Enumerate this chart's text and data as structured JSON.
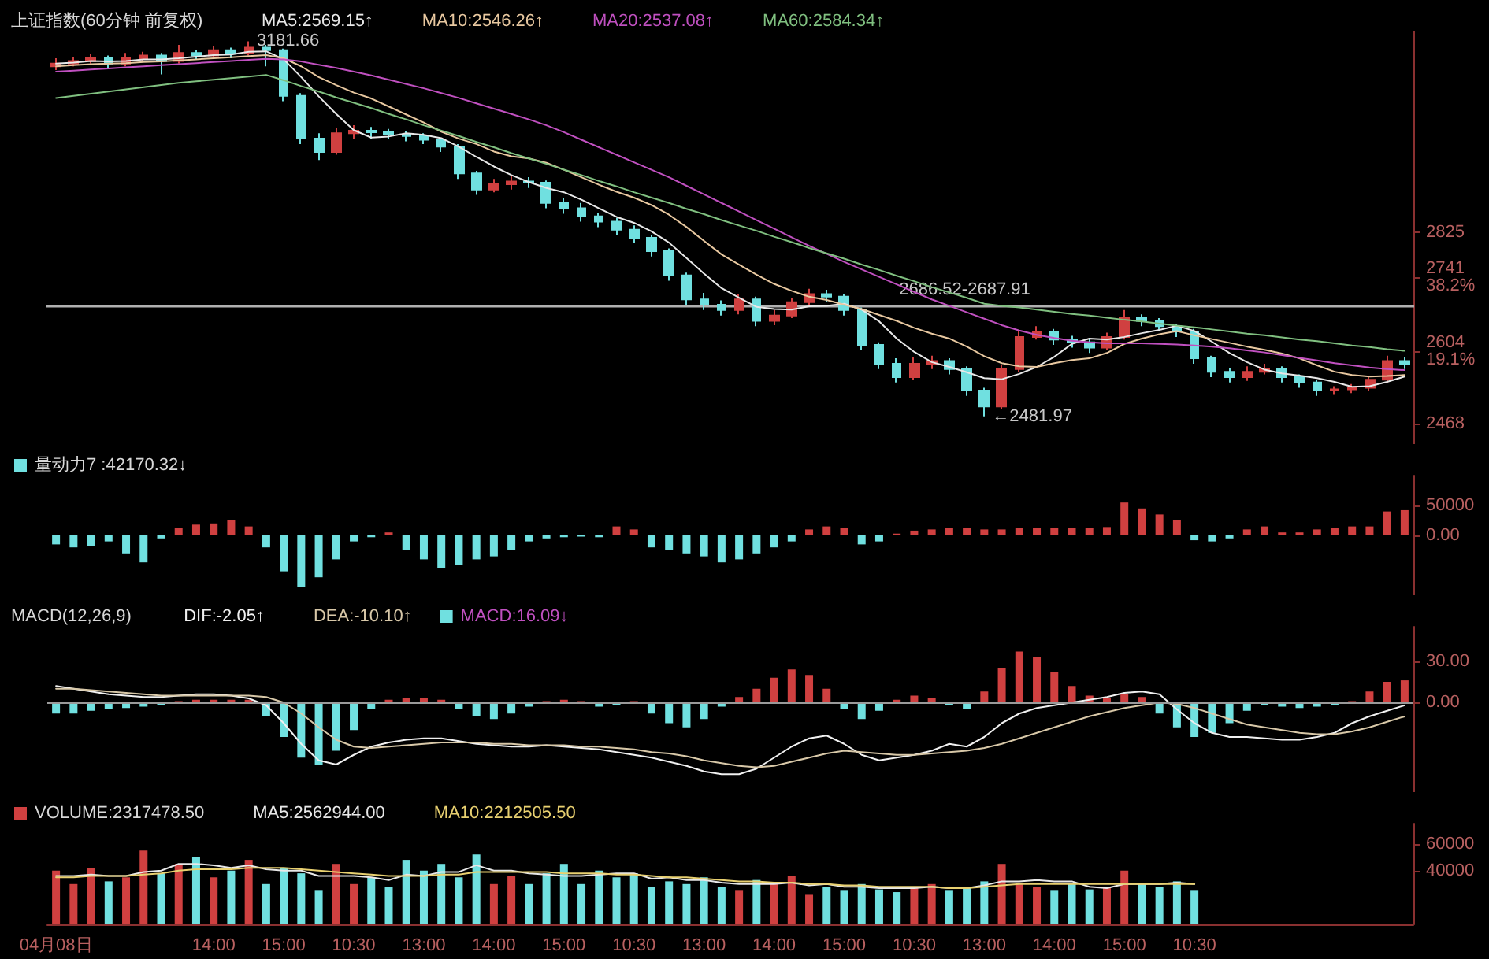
{
  "chart_data": [
    {
      "type": "candlestick",
      "title": "上证指数(60分钟 前复权)",
      "legend": "top left",
      "marker": "none",
      "grid": false,
      "tick_labels": "y",
      "ylim": [
        2430,
        3200
      ],
      "yticks": [
        2468,
        {
          "value": 2604,
          "label": "2604\n19.1%"
        },
        {
          "value": 2741,
          "label": "2741\n38.2%"
        },
        2825
      ],
      "annotations": [
        "3181.66",
        "←2481.97"
      ],
      "bands": [
        {
          "axis": "y",
          "from": 2686.52,
          "to": 2687.91,
          "label": "2686.52-2687.91",
          "color": "#b0b0b0"
        }
      ],
      "series": [
        {
          "color": "#d04040",
          "colors": [
            "#d04040",
            "#d04040",
            "#d04040",
            "#70e0e0",
            "#d04040",
            "#d04040",
            "#70e0e0",
            "#d04040",
            "#70e0e0",
            "#d04040",
            "#70e0e0",
            "#d04040",
            "#70e0e0",
            "#70e0e0",
            "#70e0e0",
            "#70e0e0",
            "#d04040",
            "#d04040",
            "#70e0e0",
            "#70e0e0",
            "#70e0e0",
            "#70e0e0",
            "#70e0e0",
            "#70e0e0",
            "#70e0e0",
            "#d04040",
            "#d04040",
            "#70e0e0",
            "#70e0e0",
            "#70e0e0",
            "#70e0e0",
            "#70e0e0",
            "#70e0e0",
            "#70e0e0",
            "#70e0e0",
            "#70e0e0",
            "#70e0e0",
            "#70e0e0",
            "#70e0e0",
            "#d04040",
            "#70e0e0",
            "#d04040",
            "#d04040",
            "#d04040",
            "#70e0e0",
            "#70e0e0",
            "#70e0e0",
            "#70e0e0",
            "#70e0e0",
            "#d04040",
            "#d04040",
            "#70e0e0",
            "#70e0e0",
            "#70e0e0",
            "#d04040",
            "#d04040",
            "#d04040",
            "#70e0e0",
            "#70e0e0",
            "#70e0e0",
            "#d04040",
            "#d04040",
            "#70e0e0",
            "#70e0e0",
            "#70e0e0",
            "#70e0e0",
            "#70e0e0",
            "#70e0e0",
            "#d04040",
            "#d04040",
            "#70e0e0",
            "#70e0e0",
            "#70e0e0",
            "#d04040",
            "#d04040",
            "#d04040",
            "#d04040",
            "#70e0e0"
          ],
          "ohlc": [
            [
              3135,
              3150,
              3128,
              3140
            ],
            [
              3140,
              3152,
              3135,
              3145
            ],
            [
              3145,
              3158,
              3140,
              3150
            ],
            [
              3150,
              3155,
              3132,
              3140
            ],
            [
              3140,
              3160,
              3135,
              3150
            ],
            [
              3150,
              3162,
              3145,
              3155
            ],
            [
              3155,
              3160,
              3120,
              3145
            ],
            [
              3145,
              3175,
              3140,
              3160
            ],
            [
              3160,
              3165,
              3148,
              3155
            ],
            [
              3155,
              3172,
              3150,
              3165
            ],
            [
              3165,
              3170,
              3150,
              3160
            ],
            [
              3160,
              3181.66,
              3155,
              3170
            ],
            [
              3170,
              3175,
              3135,
              3165
            ],
            [
              3165,
              3168,
              3070,
              3080
            ],
            [
              3080,
              3085,
              2990,
              3000
            ],
            [
              3000,
              3010,
              2960,
              2975
            ],
            [
              2975,
              3020,
              2970,
              3010
            ],
            [
              3010,
              3025,
              3000,
              3015
            ],
            [
              3015,
              3022,
              3000,
              3012
            ],
            [
              3012,
              3018,
              3000,
              3008
            ],
            [
              3008,
              3015,
              2995,
              3005
            ],
            [
              3005,
              3010,
              2990,
              2998
            ],
            [
              2998,
              3002,
              2975,
              2985
            ],
            [
              2985,
              2990,
              2925,
              2935
            ],
            [
              2935,
              2940,
              2895,
              2905
            ],
            [
              2905,
              2925,
              2900,
              2915
            ],
            [
              2915,
              2930,
              2905,
              2920
            ],
            [
              2920,
              2928,
              2908,
              2918
            ],
            [
              2918,
              2922,
              2870,
              2880
            ],
            [
              2880,
              2890,
              2860,
              2870
            ],
            [
              2870,
              2880,
              2845,
              2855
            ],
            [
              2855,
              2862,
              2835,
              2845
            ],
            [
              2845,
              2852,
              2820,
              2830
            ],
            [
              2830,
              2838,
              2805,
              2815
            ],
            [
              2815,
              2820,
              2780,
              2790
            ],
            [
              2790,
              2795,
              2735,
              2745
            ],
            [
              2745,
              2750,
              2690,
              2700
            ],
            [
              2700,
              2712,
              2680,
              2690
            ],
            [
              2690,
              2698,
              2670,
              2680
            ],
            [
              2680,
              2710,
              2672,
              2700
            ],
            [
              2700,
              2705,
              2650,
              2660
            ],
            [
              2660,
              2680,
              2652,
              2670
            ],
            [
              2670,
              2702,
              2665,
              2695
            ],
            [
              2695,
              2720,
              2690,
              2710
            ],
            [
              2710,
              2718,
              2695,
              2705
            ],
            [
              2705,
              2710,
              2670,
              2680
            ],
            [
              2680,
              2685,
              2605,
              2615
            ],
            [
              2615,
              2620,
              2570,
              2580
            ],
            [
              2580,
              2590,
              2545,
              2555
            ],
            [
              2555,
              2592,
              2550,
              2580
            ],
            [
              2580,
              2595,
              2570,
              2585
            ],
            [
              2585,
              2590,
              2560,
              2570
            ],
            [
              2570,
              2575,
              2520,
              2530
            ],
            [
              2530,
              2535,
              2481.97,
              2500
            ],
            [
              2500,
              2578,
              2495,
              2570
            ],
            [
              2570,
              2640,
              2565,
              2630
            ],
            [
              2630,
              2650,
              2625,
              2640
            ],
            [
              2640,
              2645,
              2615,
              2625
            ],
            [
              2625,
              2632,
              2610,
              2620
            ],
            [
              2620,
              2628,
              2600,
              2610
            ],
            [
              2610,
              2638,
              2605,
              2630
            ],
            [
              2630,
              2680,
              2625,
              2665
            ],
            [
              2665,
              2672,
              2650,
              2660
            ],
            [
              2660,
              2665,
              2640,
              2650
            ],
            [
              2650,
              2655,
              2630,
              2640
            ],
            [
              2640,
              2645,
              2580,
              2590
            ],
            [
              2590,
              2595,
              2555,
              2565
            ],
            [
              2565,
              2572,
              2545,
              2555
            ],
            [
              2555,
              2575,
              2548,
              2565
            ],
            [
              2565,
              2580,
              2560,
              2570
            ],
            [
              2570,
              2575,
              2545,
              2555
            ],
            [
              2555,
              2560,
              2535,
              2545
            ],
            [
              2545,
              2550,
              2520,
              2530
            ],
            [
              2530,
              2538,
              2522,
              2532
            ],
            [
              2532,
              2542,
              2525,
              2535
            ],
            [
              2535,
              2558,
              2530,
              2550
            ],
            [
              2550,
              2595,
              2545,
              2585
            ],
            [
              2585,
              2592,
              2570,
              2580
            ]
          ]
        },
        {
          "type": "line",
          "name": "MA5:2569.15↑",
          "color": "#e8e8e8",
          "values": [
            3140,
            3142,
            3145,
            3144,
            3145,
            3148,
            3148,
            3150,
            3153,
            3156,
            3157,
            3162,
            3163,
            3148,
            3115,
            3079,
            3046,
            3016,
            3002,
            3004,
            3010,
            3007,
            3001,
            2985,
            2966,
            2948,
            2932,
            2919,
            2908,
            2900,
            2886,
            2870,
            2854,
            2843,
            2827,
            2806,
            2777,
            2748,
            2721,
            2703,
            2686,
            2682,
            2681,
            2687,
            2688,
            2692,
            2681,
            2659,
            2627,
            2602,
            2583,
            2574,
            2564,
            2553,
            2551,
            2561,
            2574,
            2593,
            2617,
            2627,
            2625,
            2630,
            2637,
            2643,
            2651,
            2641,
            2621,
            2600,
            2583,
            2569,
            2562,
            2558,
            2553,
            2546,
            2537,
            2538,
            2546,
            2556
          ]
        },
        {
          "type": "line",
          "name": "MA10:2546.26↑",
          "color": "#e8c8a0",
          "values": [
            3135,
            3137,
            3139,
            3140,
            3141,
            3143,
            3144,
            3146,
            3148,
            3150,
            3152,
            3154,
            3156,
            3150,
            3135,
            3115,
            3100,
            3086,
            3075,
            3060,
            3045,
            3030,
            3013,
            3000,
            2990,
            2976,
            2967,
            2963,
            2955,
            2942,
            2928,
            2914,
            2901,
            2890,
            2876,
            2858,
            2835,
            2809,
            2784,
            2765,
            2746,
            2729,
            2716,
            2705,
            2699,
            2690,
            2682,
            2671,
            2660,
            2647,
            2636,
            2627,
            2612,
            2594,
            2581,
            2575,
            2574,
            2581,
            2587,
            2590,
            2600,
            2617,
            2627,
            2635,
            2641,
            2633,
            2626,
            2619,
            2612,
            2606,
            2599,
            2590,
            2577,
            2565,
            2559,
            2556,
            2557,
            2559
          ]
        },
        {
          "type": "line",
          "name": "MA20:2537.08↑",
          "color": "#c050c0",
          "values": [
            3125,
            3127,
            3129,
            3131,
            3133,
            3135,
            3137,
            3139,
            3141,
            3143,
            3145,
            3147,
            3149,
            3148,
            3144,
            3138,
            3132,
            3125,
            3118,
            3110,
            3102,
            3094,
            3085,
            3076,
            3066,
            3056,
            3046,
            3036,
            3025,
            3012,
            2998,
            2984,
            2970,
            2956,
            2942,
            2928,
            2912,
            2896,
            2880,
            2864,
            2848,
            2832,
            2816,
            2800,
            2785,
            2770,
            2756,
            2742,
            2728,
            2714,
            2700,
            2688,
            2676,
            2664,
            2652,
            2642,
            2634,
            2628,
            2623,
            2620,
            2618,
            2618,
            2618,
            2617,
            2616,
            2614,
            2612,
            2609,
            2605,
            2601,
            2596,
            2591,
            2586,
            2581,
            2577,
            2573,
            2570,
            2568
          ]
        },
        {
          "type": "line",
          "name": "MA60:2584.34↑",
          "color": "#80c080",
          "values": [
            3076,
            3080,
            3084,
            3088,
            3092,
            3096,
            3100,
            3104,
            3107,
            3110,
            3113,
            3116,
            3119,
            3109,
            3098,
            3088,
            3077,
            3067,
            3057,
            3046,
            3036,
            3025,
            3015,
            3005,
            2994,
            2984,
            2973,
            2963,
            2953,
            2942,
            2932,
            2921,
            2911,
            2900,
            2890,
            2880,
            2869,
            2859,
            2848,
            2838,
            2828,
            2817,
            2807,
            2796,
            2786,
            2776,
            2765,
            2755,
            2744,
            2734,
            2723,
            2713,
            2703,
            2692,
            2688,
            2685,
            2681,
            2677,
            2673,
            2670,
            2666,
            2662,
            2659,
            2655,
            2651,
            2648,
            2644,
            2640,
            2636,
            2633,
            2629,
            2625,
            2622,
            2618,
            2614,
            2611,
            2607,
            2604
          ]
        }
      ]
    },
    {
      "type": "bar",
      "legend": "top left",
      "grid": false,
      "tick_labels": "y",
      "ylim": [
        -100000,
        100000
      ],
      "yticks": [
        {
          "value": 0,
          "label": "0.00"
        },
        50000
      ],
      "series": [
        {
          "name": "量动力7 :42170.32↓",
          "color": "#d8d8d8",
          "colors": [
            "#70e0e0",
            "#70e0e0",
            "#70e0e0",
            "#70e0e0",
            "#70e0e0",
            "#70e0e0",
            "#70e0e0",
            "#d04040",
            "#d04040",
            "#d04040",
            "#d04040",
            "#d04040",
            "#70e0e0",
            "#70e0e0",
            "#70e0e0",
            "#70e0e0",
            "#70e0e0",
            "#70e0e0",
            "#70e0e0",
            "#d04040",
            "#70e0e0",
            "#70e0e0",
            "#70e0e0",
            "#70e0e0",
            "#70e0e0",
            "#70e0e0",
            "#70e0e0",
            "#70e0e0",
            "#70e0e0",
            "#70e0e0",
            "#70e0e0",
            "#70e0e0",
            "#d04040",
            "#d04040",
            "#70e0e0",
            "#70e0e0",
            "#70e0e0",
            "#70e0e0",
            "#70e0e0",
            "#70e0e0",
            "#70e0e0",
            "#70e0e0",
            "#70e0e0",
            "#d04040",
            "#d04040",
            "#d04040",
            "#70e0e0",
            "#70e0e0",
            "#d04040",
            "#d04040",
            "#d04040",
            "#d04040",
            "#d04040",
            "#d04040",
            "#d04040",
            "#d04040",
            "#d04040",
            "#d04040",
            "#d04040",
            "#d04040",
            "#d04040",
            "#d04040",
            "#d04040",
            "#d04040",
            "#d04040",
            "#70e0e0",
            "#70e0e0",
            "#70e0e0",
            "#d04040",
            "#d04040",
            "#d04040",
            "#d04040",
            "#d04040",
            "#d04040",
            "#d04040",
            "#d04040",
            "#d04040",
            "#d04040"
          ],
          "values": [
            -15000,
            -20000,
            -18000,
            -10000,
            -30000,
            -45000,
            -5000,
            12000,
            18000,
            20000,
            25000,
            15000,
            -20000,
            -60000,
            -86000,
            -70000,
            -40000,
            -10000,
            -3000,
            5000,
            -25000,
            -40000,
            -55000,
            -50000,
            -40000,
            -35000,
            -25000,
            -10000,
            -5000,
            -3000,
            -2000,
            -3000,
            15000,
            10000,
            -20000,
            -25000,
            -30000,
            -35000,
            -45000,
            -40000,
            -30000,
            -20000,
            -10000,
            10000,
            15000,
            12000,
            -15000,
            -10000,
            3000,
            8000,
            10000,
            12000,
            12000,
            10000,
            10000,
            12000,
            12000,
            12000,
            13000,
            13000,
            14000,
            55000,
            45000,
            35000,
            25000,
            -8000,
            -10000,
            -5000,
            10000,
            15000,
            5000,
            5000,
            10000,
            12000,
            15000,
            15000,
            40000,
            42170.32
          ]
        }
      ]
    },
    {
      "type": "bar",
      "title": "MACD(12,26,9)",
      "legend": "top left",
      "marker": "none",
      "grid": false,
      "tick_labels": "y",
      "ylim": [
        -65,
        55
      ],
      "yticks": [
        {
          "value": 0,
          "label": "0.00"
        },
        {
          "value": 30,
          "label": "30.00"
        }
      ],
      "ref_lines": [
        {
          "axis": "y",
          "value": 0,
          "color": "#9a9a9a"
        }
      ],
      "series": [
        {
          "type": "line",
          "name": "DIF:-2.05↑",
          "color": "#f0f0f0",
          "values": [
            12,
            10,
            8,
            6,
            5,
            4,
            4,
            5,
            6,
            6,
            5,
            3,
            -2,
            -15,
            -30,
            -42,
            -45,
            -38,
            -32,
            -29,
            -27,
            -26,
            -26,
            -28,
            -30,
            -31,
            -32,
            -32,
            -31,
            -32,
            -33,
            -34,
            -36,
            -38,
            -40,
            -43,
            -46,
            -50,
            -52,
            -52,
            -48,
            -40,
            -32,
            -26,
            -24,
            -30,
            -38,
            -42,
            -40,
            -38,
            -35,
            -30,
            -32,
            -25,
            -15,
            -8,
            -4,
            -2,
            0,
            2,
            4,
            7,
            8,
            6,
            -5,
            -15,
            -22,
            -25,
            -25,
            -26,
            -27,
            -27,
            -25,
            -22,
            -15,
            -10,
            -6,
            -2.05
          ]
        },
        {
          "type": "line",
          "name": "DEA:-10.10↑",
          "color": "#d8c8a8",
          "values": [
            10,
            10,
            9,
            8,
            7,
            6,
            5,
            5,
            5,
            5,
            5,
            5,
            4,
            0,
            -8,
            -18,
            -27,
            -32,
            -33,
            -32,
            -31,
            -30,
            -29,
            -29,
            -29,
            -30,
            -30,
            -31,
            -31,
            -31,
            -32,
            -32,
            -33,
            -34,
            -36,
            -37,
            -39,
            -42,
            -44,
            -46,
            -47,
            -46,
            -43,
            -40,
            -37,
            -35,
            -36,
            -37,
            -38,
            -38,
            -37,
            -36,
            -35,
            -33,
            -30,
            -26,
            -22,
            -18,
            -14,
            -10,
            -7,
            -4,
            -2,
            0,
            -1,
            -4,
            -8,
            -12,
            -16,
            -18,
            -20,
            -22,
            -23,
            -23,
            -21,
            -18,
            -14,
            -10.1
          ]
        },
        {
          "name": "MACD:16.09↓",
          "color": "#c050c0",
          "colors": [
            "#70e0e0",
            "#70e0e0",
            "#70e0e0",
            "#70e0e0",
            "#70e0e0",
            "#70e0e0",
            "#70e0e0",
            "#d04040",
            "#d04040",
            "#d04040",
            "#d04040",
            "#d04040",
            "#70e0e0",
            "#70e0e0",
            "#70e0e0",
            "#70e0e0",
            "#70e0e0",
            "#70e0e0",
            "#70e0e0",
            "#d04040",
            "#d04040",
            "#d04040",
            "#d04040",
            "#70e0e0",
            "#70e0e0",
            "#70e0e0",
            "#70e0e0",
            "#70e0e0",
            "#d04040",
            "#d04040",
            "#d04040",
            "#70e0e0",
            "#70e0e0",
            "#d04040",
            "#70e0e0",
            "#70e0e0",
            "#70e0e0",
            "#70e0e0",
            "#70e0e0",
            "#d04040",
            "#d04040",
            "#d04040",
            "#d04040",
            "#d04040",
            "#d04040",
            "#70e0e0",
            "#70e0e0",
            "#70e0e0",
            "#d04040",
            "#d04040",
            "#d04040",
            "#70e0e0",
            "#70e0e0",
            "#d04040",
            "#d04040",
            "#d04040",
            "#d04040",
            "#d04040",
            "#d04040",
            "#d04040",
            "#d04040",
            "#d04040",
            "#d04040",
            "#70e0e0",
            "#70e0e0",
            "#70e0e0",
            "#70e0e0",
            "#70e0e0",
            "#70e0e0",
            "#70e0e0",
            "#70e0e0",
            "#70e0e0",
            "#70e0e0",
            "#70e0e0",
            "#d04040",
            "#d04040",
            "#d04040",
            "#d04040"
          ],
          "values": [
            -8,
            -8,
            -6,
            -5,
            -4,
            -3,
            -2,
            1,
            2,
            2,
            2,
            2,
            -10,
            -25,
            -40,
            -45,
            -35,
            -20,
            -5,
            2,
            3,
            3,
            2,
            -5,
            -10,
            -12,
            -8,
            -3,
            1,
            2,
            1,
            -3,
            -2,
            1,
            -8,
            -15,
            -18,
            -12,
            -3,
            4,
            10,
            18,
            24,
            20,
            10,
            -5,
            -12,
            -6,
            2,
            5,
            3,
            -2,
            -5,
            8,
            25,
            37,
            33,
            22,
            12,
            5,
            3,
            6,
            4,
            -8,
            -18,
            -25,
            -22,
            -15,
            -6,
            -2,
            -3,
            -4,
            -3,
            -2,
            1,
            8,
            15,
            16.09
          ]
        }
      ]
    },
    {
      "type": "bar",
      "legend": "top left",
      "marker": "none",
      "grid": false,
      "ylim": [
        0,
        75000
      ],
      "yticks": [
        40000,
        60000
      ],
      "categories": [
        "04月08日",
        null,
        null,
        null,
        null,
        null,
        null,
        null,
        null,
        "14:00",
        null,
        null,
        null,
        "15:00",
        null,
        null,
        null,
        "10:30",
        null,
        null,
        null,
        "13:00",
        null,
        null,
        null,
        "14:00",
        null,
        null,
        null,
        "15:00",
        null,
        null,
        null,
        "10:30",
        null,
        null,
        null,
        "13:00",
        null,
        null,
        null,
        "14:00",
        null,
        null,
        null,
        "15:00",
        null,
        null,
        null,
        "10:30",
        null,
        null,
        null,
        "13:00",
        null,
        null,
        null,
        "14:00",
        null,
        null,
        null,
        "15:00",
        null,
        null,
        null,
        "10:30",
        null,
        null,
        null,
        null,
        null,
        null,
        null,
        null,
        null,
        null,
        null,
        null
      ],
      "series": [
        {
          "name": "VOLUME:2317478.50",
          "color": "#d8d8d8",
          "colors": [
            "#d04040",
            "#d04040",
            "#d04040",
            "#70e0e0",
            "#d04040",
            "#d04040",
            "#70e0e0",
            "#d04040",
            "#70e0e0",
            "#d04040",
            "#70e0e0",
            "#d04040",
            "#70e0e0",
            "#70e0e0",
            "#70e0e0",
            "#70e0e0",
            "#d04040",
            "#d04040",
            "#70e0e0",
            "#70e0e0",
            "#70e0e0",
            "#70e0e0",
            "#70e0e0",
            "#70e0e0",
            "#70e0e0",
            "#d04040",
            "#d04040",
            "#70e0e0",
            "#70e0e0",
            "#70e0e0",
            "#70e0e0",
            "#70e0e0",
            "#70e0e0",
            "#70e0e0",
            "#70e0e0",
            "#70e0e0",
            "#70e0e0",
            "#70e0e0",
            "#70e0e0",
            "#d04040",
            "#70e0e0",
            "#d04040",
            "#d04040",
            "#d04040",
            "#70e0e0",
            "#70e0e0",
            "#70e0e0",
            "#70e0e0",
            "#70e0e0",
            "#d04040",
            "#d04040",
            "#70e0e0",
            "#70e0e0",
            "#70e0e0",
            "#d04040",
            "#d04040",
            "#d04040",
            "#70e0e0",
            "#70e0e0",
            "#70e0e0",
            "#d04040",
            "#d04040",
            "#70e0e0",
            "#70e0e0",
            "#70e0e0",
            "#70e0e0",
            null,
            null,
            null,
            null,
            null,
            null,
            null,
            null,
            null,
            null,
            null,
            null
          ],
          "values": [
            40000,
            30000,
            42000,
            32000,
            35000,
            55000,
            38000,
            45000,
            50000,
            35000,
            40000,
            48000,
            30000,
            42000,
            38000,
            25000,
            45000,
            30000,
            35000,
            28000,
            48000,
            40000,
            45000,
            35000,
            52000,
            30000,
            36000,
            30000,
            38000,
            45000,
            30000,
            40000,
            35000,
            38000,
            28000,
            32000,
            30000,
            35000,
            28000,
            25000,
            33000,
            30000,
            36000,
            22000,
            28000,
            25000,
            30000,
            26000,
            24000,
            28000,
            30000,
            25000,
            28000,
            32000,
            45000,
            30000,
            28000,
            25000,
            30000,
            26000,
            28000,
            40000,
            30000,
            28000,
            32000,
            25000,
            null,
            null,
            null,
            null,
            null,
            null,
            null,
            null,
            null,
            null,
            null,
            null
          ]
        },
        {
          "type": "line",
          "name": "MA5:2562944.00",
          "color": "#e8e8e8",
          "values": [
            36000,
            36000,
            37000,
            36000,
            36000,
            39000,
            40000,
            45000,
            45000,
            44000,
            42000,
            44000,
            41000,
            40000,
            40000,
            36000,
            36000,
            36000,
            35000,
            33000,
            37000,
            36000,
            39000,
            39000,
            44000,
            40000,
            40000,
            38000,
            37000,
            36000,
            36000,
            37000,
            38000,
            38000,
            34000,
            35000,
            33000,
            33000,
            31000,
            30000,
            30000,
            30000,
            31000,
            29000,
            30000,
            28000,
            28000,
            27000,
            27000,
            27000,
            28000,
            27000,
            27000,
            29000,
            32000,
            32000,
            33000,
            32000,
            32000,
            28000,
            27000,
            30000,
            30000,
            30000,
            31000,
            30000,
            null,
            null,
            null,
            null,
            null,
            null,
            null,
            null,
            null,
            null,
            null,
            null
          ]
        },
        {
          "type": "line",
          "name": "MA10:2212505.50",
          "color": "#e8d070",
          "values": [
            35000,
            35000,
            36000,
            36000,
            36000,
            37000,
            38000,
            40000,
            41000,
            41000,
            41000,
            42000,
            42000,
            42000,
            41000,
            40000,
            39000,
            38000,
            37000,
            36000,
            36000,
            36000,
            37000,
            37000,
            39000,
            39000,
            39000,
            39000,
            39000,
            38000,
            38000,
            38000,
            37000,
            37000,
            36000,
            35000,
            35000,
            34000,
            33000,
            32000,
            32000,
            31000,
            31000,
            30000,
            30000,
            29000,
            29000,
            28000,
            28000,
            28000,
            28000,
            27000,
            27000,
            28000,
            29000,
            30000,
            30000,
            30000,
            30000,
            30000,
            30000,
            30000,
            30000,
            30000,
            30000,
            30000,
            null,
            null,
            null,
            null,
            null,
            null,
            null,
            null,
            null,
            null,
            null,
            null
          ]
        }
      ]
    }
  ]
}
